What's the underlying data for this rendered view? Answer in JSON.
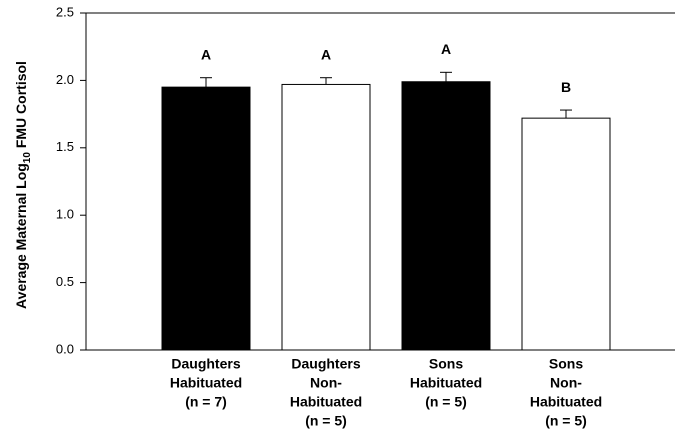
{
  "chart_data": {
    "type": "bar",
    "ylabel": [
      "Average Maternal Log",
      "10",
      " FMU Cortisol"
    ],
    "categories": [
      [
        "Daughters",
        "Habituated",
        "(n = 7)"
      ],
      [
        "Daughters",
        "Non-",
        "Habituated",
        "(n = 5)"
      ],
      [
        "Sons",
        "Habituated",
        "(n = 5)"
      ],
      [
        "Sons",
        "Non-",
        "Habituated",
        "(n = 5)"
      ]
    ],
    "values": [
      1.95,
      1.97,
      1.99,
      1.72
    ],
    "errors": [
      0.07,
      0.05,
      0.07,
      0.06
    ],
    "annotations": [
      "A",
      "A",
      "A",
      "B"
    ],
    "colors": [
      "#000000",
      "#ffffff",
      "#000000",
      "#ffffff"
    ],
    "ylim": [
      0,
      2.5
    ],
    "yticks": [
      {
        "value": 0,
        "label": "0.0"
      },
      {
        "value": 0.5,
        "label": "0.5"
      },
      {
        "value": 1,
        "label": "1.0"
      },
      {
        "value": 1.5,
        "label": "1.5"
      },
      {
        "value": 2,
        "label": "2.0"
      },
      {
        "value": 2.5,
        "label": "2.5"
      }
    ]
  }
}
